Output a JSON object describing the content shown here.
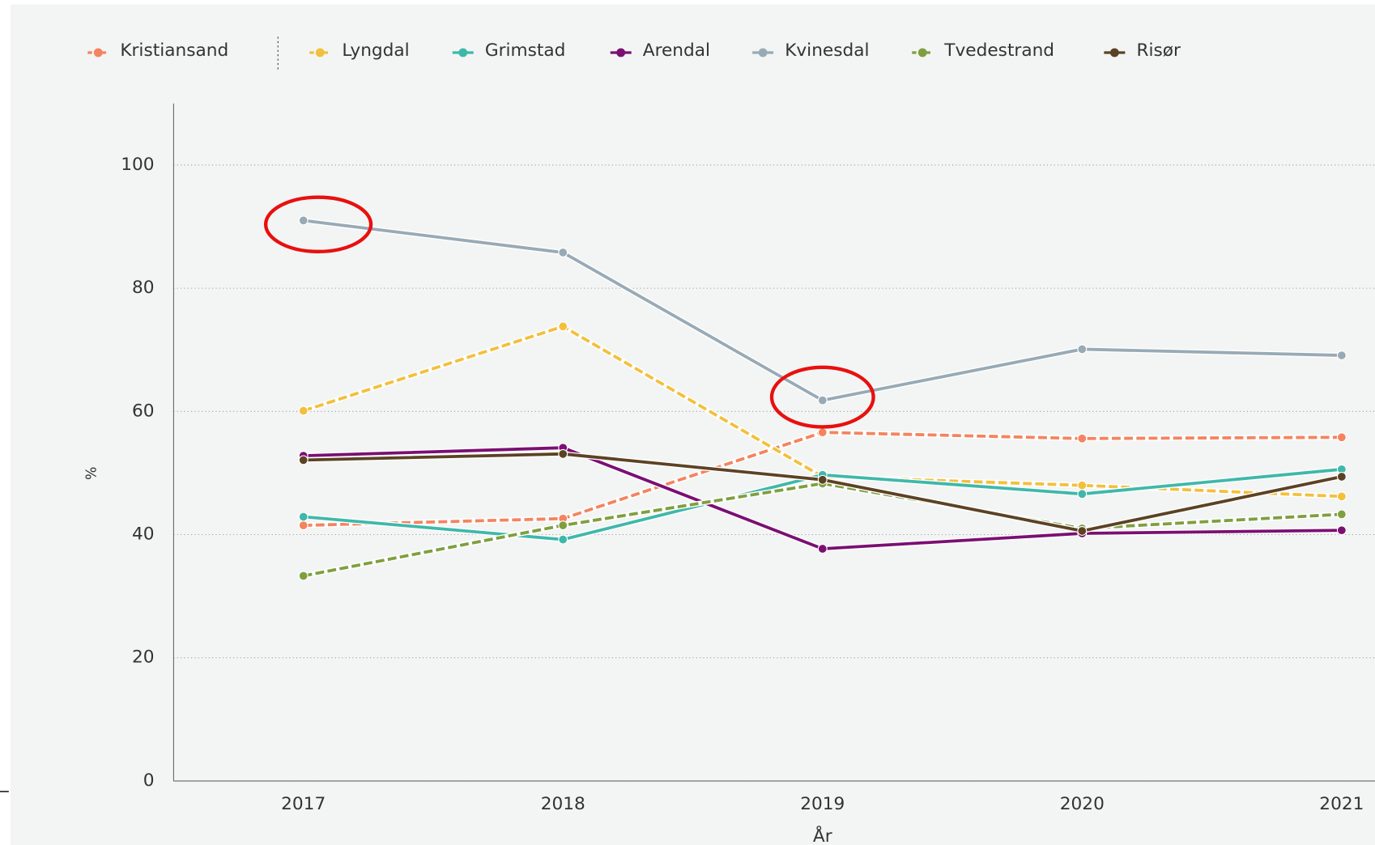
{
  "chart_data": {
    "type": "line",
    "categories": [
      "2017",
      "2018",
      "2019",
      "2020",
      "2021"
    ],
    "series": [
      {
        "name": "Kristiansand",
        "color": "#f4845f",
        "dashed": true,
        "values": [
          41.5,
          42.6,
          56.6,
          55.6,
          55.8
        ]
      },
      {
        "name": "Lyngdal",
        "color": "#f3c03d",
        "dashed": true,
        "values": [
          60.1,
          73.8,
          49.4,
          48.0,
          46.2
        ]
      },
      {
        "name": "Grimstad",
        "color": "#3fb8aa",
        "dashed": false,
        "values": [
          42.9,
          39.2,
          49.7,
          46.6,
          50.6
        ]
      },
      {
        "name": "Arendal",
        "color": "#7b0f73",
        "dashed": false,
        "values": [
          52.8,
          54.1,
          37.7,
          40.2,
          40.7
        ]
      },
      {
        "name": "Kvinesdal",
        "color": "#98aab5",
        "dashed": false,
        "values": [
          91.0,
          85.8,
          61.8,
          70.1,
          69.1
        ]
      },
      {
        "name": "Tvedestrand",
        "color": "#7f9f3f",
        "dashed": true,
        "values": [
          33.3,
          41.5,
          48.3,
          41.0,
          43.3
        ]
      },
      {
        "name": "Risør",
        "color": "#5c4224",
        "dashed": false,
        "values": [
          52.1,
          53.1,
          48.9,
          40.6,
          49.4
        ]
      }
    ],
    "x_label": "År",
    "y_label": "%",
    "ylim": [
      0,
      110
    ],
    "yticks": [
      0,
      20,
      40,
      60,
      80,
      100
    ],
    "grid": true
  }
}
